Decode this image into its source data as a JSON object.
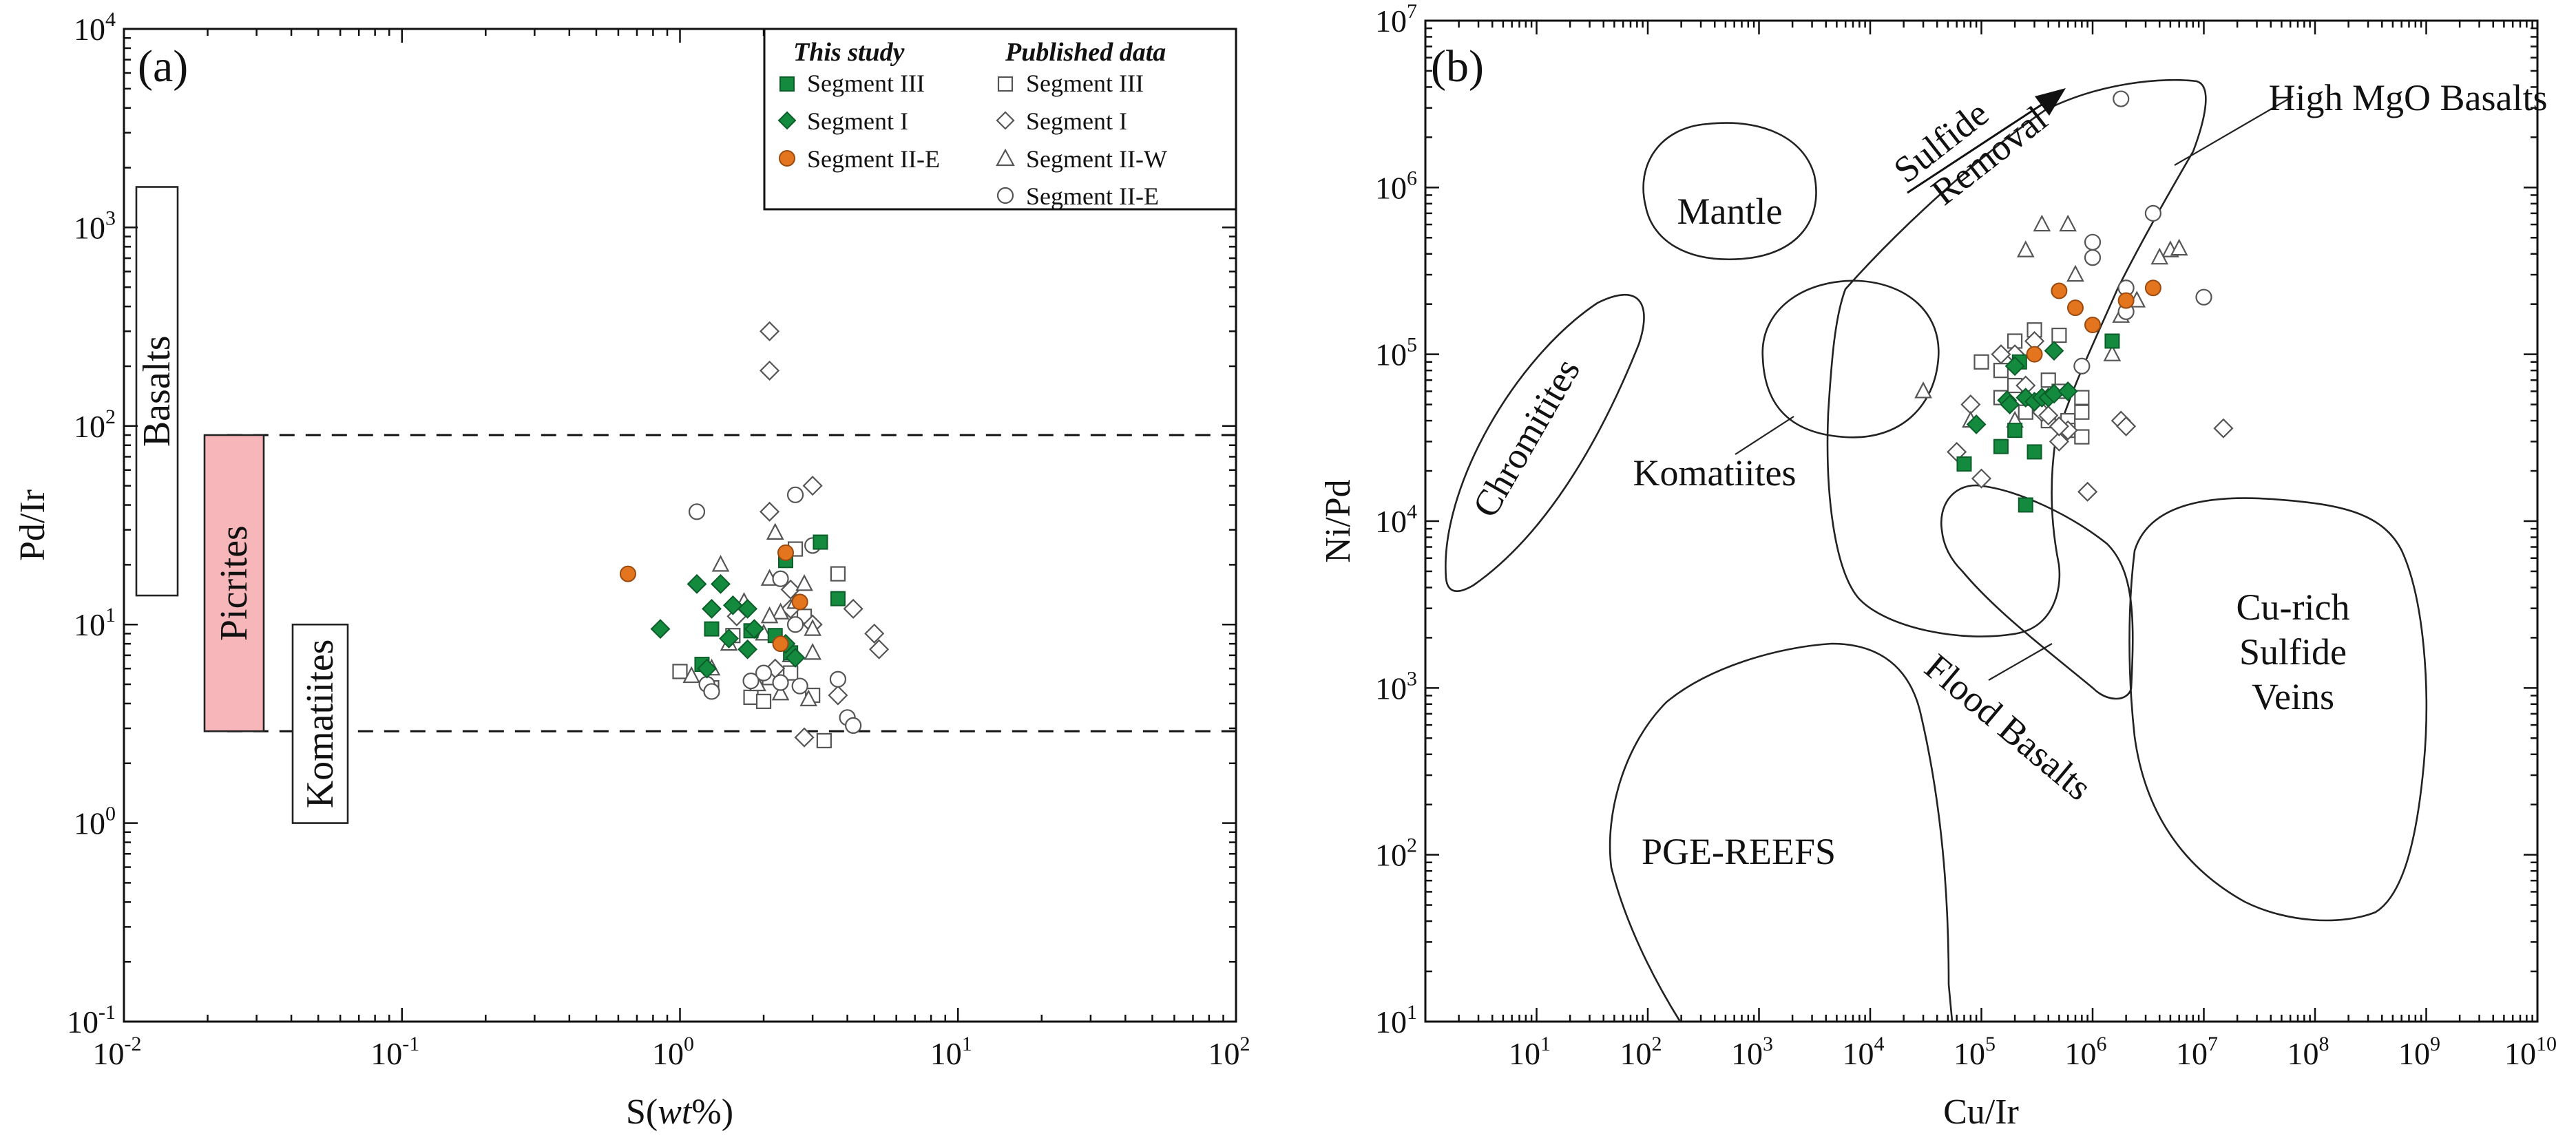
{
  "colors": {
    "segment_III": "#138a3e",
    "segment_I": "#138a3e",
    "segment_IIE": "#e3751e",
    "published": "#555555",
    "picrites": "#f7b6ba"
  },
  "chart_data": [
    {
      "type": "scatter",
      "panel_label": "(a)",
      "xlabel_pre": "S(",
      "xlabel_em": "wt",
      "xlabel_post": "%)",
      "ylabel": "Pd/Ir",
      "x_scale": "log",
      "y_scale": "log",
      "xlim": [
        0.01,
        100
      ],
      "ylim": [
        0.1,
        10000
      ],
      "x_ticks": [
        {
          "m": "10",
          "e": "-2"
        },
        {
          "m": "10",
          "e": "-1"
        },
        {
          "m": "10",
          "e": "0"
        },
        {
          "m": "10",
          "e": "1"
        },
        {
          "m": "10",
          "e": "2"
        }
      ],
      "y_ticks": [
        {
          "m": "10",
          "e": "-1"
        },
        {
          "m": "10",
          "e": "0"
        },
        {
          "m": "10",
          "e": "1"
        },
        {
          "m": "10",
          "e": "2"
        },
        {
          "m": "10",
          "e": "3"
        },
        {
          "m": "10",
          "e": "4"
        }
      ],
      "reference_lines": [
        90,
        2.9
      ],
      "fields": [
        {
          "name": "Basalts",
          "ylo": 14,
          "yhi": 1600
        },
        {
          "name": "Picrites",
          "ylo": 2.9,
          "yhi": 90
        },
        {
          "name": "Komatiites",
          "ylo": 1.0,
          "yhi": 10
        }
      ],
      "legend": {
        "this_study_title": "This study",
        "published_title": "Published data",
        "this_study": [
          "Segment III",
          "Segment I",
          "Segment II-E"
        ],
        "published": [
          "Segment III",
          "Segment I",
          "Segment II-W",
          "Segment II-E"
        ]
      },
      "series": [
        {
          "name": "Segment III (this study)",
          "marker": "square",
          "filled": true,
          "points": [
            [
              3.2,
              26
            ],
            [
              3.7,
              13.5
            ],
            [
              2.2,
              8.8
            ],
            [
              1.3,
              9.5
            ],
            [
              1.8,
              9.3
            ],
            [
              2.5,
              7.2
            ],
            [
              1.2,
              6.3
            ],
            [
              2.4,
              21
            ]
          ]
        },
        {
          "name": "Segment I (this study)",
          "marker": "diamond",
          "filled": true,
          "points": [
            [
              0.85,
              9.5
            ],
            [
              1.15,
              16
            ],
            [
              1.4,
              16
            ],
            [
              1.55,
              12.5
            ],
            [
              1.75,
              12
            ],
            [
              1.3,
              12
            ],
            [
              1.85,
              9.5
            ],
            [
              1.5,
              8.5
            ],
            [
              1.75,
              7.5
            ],
            [
              2.6,
              6.8
            ],
            [
              1.25,
              6
            ],
            [
              2.4,
              8
            ]
          ]
        },
        {
          "name": "Segment II-E (this study)",
          "marker": "circle",
          "filled": true,
          "points": [
            [
              0.65,
              18
            ],
            [
              2.4,
              23
            ],
            [
              2.7,
              13
            ],
            [
              2.3,
              8
            ]
          ]
        },
        {
          "name": "Segment III (published)",
          "marker": "square",
          "filled": false,
          "points": [
            [
              1.0,
              5.8
            ],
            [
              1.3,
              4.8
            ],
            [
              2.1,
              5.4
            ],
            [
              2.5,
              5.7
            ],
            [
              3.0,
              4.4
            ],
            [
              3.3,
              2.6
            ],
            [
              3.7,
              18
            ],
            [
              2.6,
              24
            ],
            [
              1.55,
              8.8
            ],
            [
              1.8,
              4.3
            ],
            [
              2.0,
              4.1
            ],
            [
              2.8,
              11
            ]
          ]
        },
        {
          "name": "Segment I (published)",
          "marker": "diamond",
          "filled": false,
          "points": [
            [
              2.1,
              300
            ],
            [
              2.1,
              190
            ],
            [
              2.1,
              37
            ],
            [
              3.0,
              50
            ],
            [
              5.0,
              9
            ],
            [
              5.2,
              7.5
            ],
            [
              4.2,
              12
            ],
            [
              3.0,
              10
            ],
            [
              2.2,
              6
            ],
            [
              2.5,
              12
            ],
            [
              3.7,
              4.4
            ],
            [
              2.8,
              2.7
            ],
            [
              2.5,
              15
            ],
            [
              1.6,
              11
            ]
          ]
        },
        {
          "name": "Segment II-W (published)",
          "marker": "triangle",
          "filled": false,
          "points": [
            [
              2.2,
              29
            ],
            [
              1.4,
              20
            ],
            [
              2.1,
              17
            ],
            [
              2.8,
              16
            ],
            [
              2.6,
              13
            ],
            [
              1.7,
              13
            ],
            [
              2.3,
              11.5
            ],
            [
              2.1,
              11
            ],
            [
              3.0,
              9.5
            ],
            [
              2.0,
              9
            ],
            [
              1.5,
              8
            ],
            [
              3.0,
              7.2
            ],
            [
              2.5,
              7
            ],
            [
              1.3,
              6
            ],
            [
              1.1,
              5.5
            ],
            [
              1.9,
              5
            ],
            [
              2.3,
              4.5
            ],
            [
              2.9,
              4.2
            ]
          ]
        },
        {
          "name": "Segment II-E (published)",
          "marker": "circle",
          "filled": false,
          "points": [
            [
              1.15,
              37
            ],
            [
              2.6,
              45
            ],
            [
              3.0,
              25
            ],
            [
              2.3,
              17
            ],
            [
              2.6,
              10
            ],
            [
              1.25,
              5
            ],
            [
              1.8,
              5.2
            ],
            [
              2.3,
              5.1
            ],
            [
              2.7,
              4.9
            ],
            [
              3.7,
              5.3
            ],
            [
              4.0,
              3.4
            ],
            [
              4.2,
              3.1
            ],
            [
              1.3,
              4.6
            ],
            [
              2.0,
              5.7
            ]
          ]
        }
      ]
    },
    {
      "type": "scatter",
      "panel_label": "(b)",
      "xlabel": "Cu/Ir",
      "ylabel": "Ni/Pd",
      "x_scale": "log",
      "y_scale": "log",
      "xlim": [
        1,
        10000000000
      ],
      "ylim": [
        10,
        10000000
      ],
      "x_ticks": [
        {
          "m": "10",
          "e": "1"
        },
        {
          "m": "10",
          "e": "2"
        },
        {
          "m": "10",
          "e": "3"
        },
        {
          "m": "10",
          "e": "4"
        },
        {
          "m": "10",
          "e": "5"
        },
        {
          "m": "10",
          "e": "6"
        },
        {
          "m": "10",
          "e": "7"
        },
        {
          "m": "10",
          "e": "8"
        },
        {
          "m": "10",
          "e": "9"
        },
        {
          "m": "10",
          "e": "10"
        }
      ],
      "y_ticks": [
        {
          "m": "10",
          "e": "1"
        },
        {
          "m": "10",
          "e": "2"
        },
        {
          "m": "10",
          "e": "3"
        },
        {
          "m": "10",
          "e": "4"
        },
        {
          "m": "10",
          "e": "5"
        },
        {
          "m": "10",
          "e": "6"
        },
        {
          "m": "10",
          "e": "7"
        }
      ],
      "field_labels": {
        "mantle": "Mantle",
        "chromitites": "Chromitites",
        "komatiites": "Komatiites",
        "high_mgo": "High MgO Basalts",
        "cu_rich": [
          "Cu-rich",
          "Sulfide",
          "Veins"
        ],
        "flood_basalts": "Flood Basalts",
        "pge_reefs": "PGE-REEFS",
        "sulfide_removal": [
          "Sulfide",
          "Removal"
        ]
      },
      "series": [
        {
          "name": "Segment III (this study)",
          "marker": "square",
          "filled": true,
          "points": [
            [
              1500000,
              120000
            ],
            [
              70000,
              22000
            ],
            [
              150000,
              28000
            ],
            [
              300000,
              26000
            ],
            [
              250000,
              12500
            ],
            [
              200000,
              35000
            ],
            [
              220000,
              90000
            ]
          ]
        },
        {
          "name": "Segment I (this study)",
          "marker": "diamond",
          "filled": true,
          "points": [
            [
              450000,
              105000
            ],
            [
              200000,
              85000
            ],
            [
              170000,
              53000
            ],
            [
              250000,
              55000
            ],
            [
              300000,
              52000
            ],
            [
              350000,
              55000
            ],
            [
              400000,
              55000
            ],
            [
              450000,
              58000
            ],
            [
              600000,
              60000
            ],
            [
              90000,
              38000
            ],
            [
              180000,
              50000
            ]
          ]
        },
        {
          "name": "Segment II-E (this study)",
          "marker": "circle",
          "filled": true,
          "points": [
            [
              500000,
              240000
            ],
            [
              700000,
              190000
            ],
            [
              1000000,
              150000
            ],
            [
              2000000,
              210000
            ],
            [
              3500000,
              250000
            ],
            [
              300000,
              100000
            ]
          ]
        },
        {
          "name": "Segment III (published)",
          "marker": "square",
          "filled": false,
          "points": [
            [
              100000,
              90000
            ],
            [
              200000,
              120000
            ],
            [
              300000,
              140000
            ],
            [
              500000,
              130000
            ],
            [
              800000,
              55000
            ],
            [
              800000,
              45000
            ],
            [
              800000,
              32000
            ],
            [
              600000,
              40000
            ],
            [
              400000,
              70000
            ],
            [
              200000,
              65000
            ],
            [
              150000,
              80000
            ],
            [
              150000,
              55000
            ],
            [
              250000,
              45000
            ],
            [
              350000,
              48000
            ],
            [
              400000,
              40000
            ],
            [
              600000,
              35000
            ],
            [
              500000,
              60000
            ]
          ]
        },
        {
          "name": "Segment I (published)",
          "marker": "diamond",
          "filled": false,
          "points": [
            [
              100000,
              18000
            ],
            [
              60000,
              26000
            ],
            [
              80000,
              50000
            ],
            [
              200000,
              100000
            ],
            [
              150000,
              100000
            ],
            [
              300000,
              120000
            ],
            [
              250000,
              65000
            ],
            [
              350000,
              45000
            ],
            [
              500000,
              30000
            ],
            [
              600000,
              35000
            ],
            [
              900000,
              15000
            ],
            [
              1800000,
              40000
            ],
            [
              15000000,
              36000
            ],
            [
              2000000,
              37000
            ],
            [
              500000,
              37000
            ],
            [
              400000,
              43000
            ]
          ]
        },
        {
          "name": "Segment II-W (published)",
          "marker": "triangle",
          "filled": false,
          "points": [
            [
              350000,
              600000
            ],
            [
              600000,
              600000
            ],
            [
              250000,
              420000
            ],
            [
              5000000,
              420000
            ],
            [
              6000000,
              430000
            ],
            [
              4000000,
              380000
            ],
            [
              700000,
              300000
            ],
            [
              2500000,
              210000
            ],
            [
              1800000,
              170000
            ],
            [
              1500000,
              100000
            ],
            [
              30000,
              60000
            ],
            [
              80000,
              40000
            ],
            [
              200000,
              40000
            ]
          ]
        },
        {
          "name": "Segment II-E (published)",
          "marker": "circle",
          "filled": false,
          "points": [
            [
              1800000,
              3400000
            ],
            [
              3500000,
              700000
            ],
            [
              1000000,
              470000
            ],
            [
              1000000,
              380000
            ],
            [
              2000000,
              250000
            ],
            [
              2000000,
              180000
            ],
            [
              10000000,
              220000
            ],
            [
              800000,
              85000
            ]
          ]
        }
      ]
    }
  ]
}
